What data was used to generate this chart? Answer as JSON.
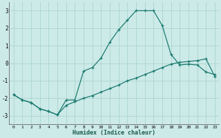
{
  "xlabel": "Humidex (Indice chaleur)",
  "background_color": "#cceae8",
  "grid_color": "#aad4d0",
  "line_color": "#1a7a6e",
  "xlim": [
    -0.5,
    23.5
  ],
  "ylim": [
    -3.5,
    3.5
  ],
  "xticks": [
    0,
    1,
    2,
    3,
    4,
    5,
    6,
    7,
    8,
    9,
    10,
    11,
    12,
    13,
    14,
    15,
    16,
    17,
    18,
    19,
    20,
    21,
    22,
    23
  ],
  "yticks": [
    -3,
    -2,
    -1,
    0,
    1,
    2,
    3
  ],
  "line1_x": [
    0,
    1,
    2,
    3,
    4,
    5,
    6,
    7,
    8,
    9,
    10,
    11,
    12,
    13,
    14,
    15,
    16,
    17,
    18,
    19,
    20,
    21,
    22,
    23
  ],
  "line1_y": [
    -1.8,
    -2.1,
    -2.25,
    -2.6,
    -2.75,
    -2.95,
    -2.1,
    -2.1,
    -0.45,
    -0.25,
    0.3,
    1.2,
    1.9,
    2.45,
    3.0,
    3.0,
    3.0,
    2.15,
    0.5,
    -0.1,
    -0.05,
    -0.1,
    -0.5,
    -0.65
  ],
  "line2_x": [
    0,
    1,
    2,
    3,
    4,
    5,
    6,
    7,
    8,
    9,
    10,
    11,
    12,
    13,
    14,
    15,
    16,
    17,
    18,
    19,
    20,
    21,
    22,
    23
  ],
  "line2_y": [
    -1.8,
    -2.1,
    -2.25,
    -2.6,
    -2.75,
    -2.95,
    -2.4,
    -2.2,
    -2.0,
    -1.85,
    -1.65,
    -1.45,
    -1.25,
    -1.0,
    -0.85,
    -0.65,
    -0.45,
    -0.25,
    -0.05,
    0.05,
    0.1,
    0.15,
    0.25,
    -0.75
  ]
}
